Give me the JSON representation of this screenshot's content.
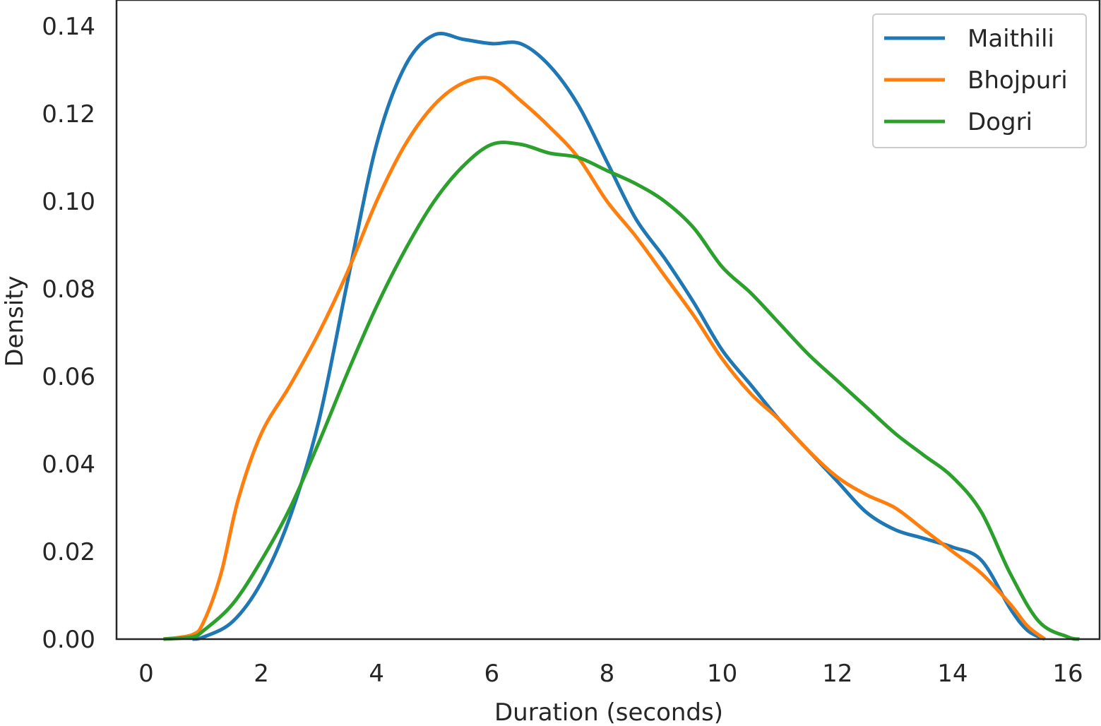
{
  "chart_data": {
    "type": "line",
    "title": "",
    "xlabel": "Duration (seconds)",
    "ylabel": "Density",
    "xlim": [
      -0.5,
      16.5
    ],
    "ylim": [
      0,
      0.146
    ],
    "x_ticks": [
      0,
      2,
      4,
      6,
      8,
      10,
      12,
      14,
      16
    ],
    "x_tick_labels": [
      "0",
      "2",
      "4",
      "6",
      "8",
      "10",
      "12",
      "14",
      "16"
    ],
    "y_ticks": [
      0.0,
      0.02,
      0.04,
      0.06,
      0.08,
      0.1,
      0.12,
      0.14
    ],
    "y_tick_labels": [
      "0.00",
      "0.02",
      "0.04",
      "0.06",
      "0.08",
      "0.10",
      "0.12",
      "0.14"
    ],
    "grid": false,
    "legend_position": "top-right",
    "series": [
      {
        "name": "Maithili",
        "color": "#1f77b4",
        "x": [
          0.8,
          1.0,
          1.5,
          2.0,
          2.5,
          3.0,
          3.5,
          4.0,
          4.5,
          5.0,
          5.5,
          6.0,
          6.5,
          7.0,
          7.5,
          8.0,
          8.5,
          9.0,
          9.5,
          10.0,
          10.5,
          11.0,
          11.5,
          12.0,
          12.5,
          13.0,
          13.5,
          14.0,
          14.5,
          15.0,
          15.3,
          15.6
        ],
        "y": [
          0.0,
          0.0005,
          0.004,
          0.013,
          0.028,
          0.05,
          0.082,
          0.113,
          0.131,
          0.138,
          0.137,
          0.136,
          0.136,
          0.131,
          0.122,
          0.109,
          0.096,
          0.087,
          0.077,
          0.066,
          0.058,
          0.05,
          0.043,
          0.036,
          0.029,
          0.025,
          0.023,
          0.021,
          0.018,
          0.007,
          0.002,
          0.0
        ]
      },
      {
        "name": "Bhojpuri",
        "color": "#ff7f0e",
        "x": [
          0.3,
          0.8,
          1.0,
          1.3,
          1.6,
          2.0,
          2.5,
          3.0,
          3.5,
          4.0,
          4.5,
          5.0,
          5.5,
          6.0,
          6.5,
          7.0,
          7.5,
          8.0,
          8.5,
          9.0,
          9.5,
          10.0,
          10.5,
          11.0,
          11.5,
          12.0,
          12.5,
          13.0,
          13.5,
          14.0,
          14.5,
          15.0,
          15.3,
          15.6
        ],
        "y": [
          0.0,
          0.001,
          0.004,
          0.015,
          0.032,
          0.047,
          0.058,
          0.07,
          0.084,
          0.1,
          0.113,
          0.122,
          0.127,
          0.128,
          0.123,
          0.117,
          0.11,
          0.1,
          0.092,
          0.083,
          0.074,
          0.064,
          0.056,
          0.05,
          0.043,
          0.037,
          0.033,
          0.03,
          0.025,
          0.02,
          0.015,
          0.008,
          0.003,
          0.0
        ]
      },
      {
        "name": "Dogri",
        "color": "#2ca02c",
        "x": [
          0.3,
          0.8,
          1.0,
          1.5,
          2.0,
          2.5,
          3.0,
          3.5,
          4.0,
          4.5,
          5.0,
          5.5,
          6.0,
          6.5,
          7.0,
          7.5,
          8.0,
          8.5,
          9.0,
          9.5,
          10.0,
          10.5,
          11.0,
          11.5,
          12.0,
          12.5,
          13.0,
          13.5,
          14.0,
          14.5,
          15.0,
          15.5,
          16.0,
          16.2
        ],
        "y": [
          0.0,
          0.0005,
          0.002,
          0.008,
          0.018,
          0.03,
          0.045,
          0.061,
          0.076,
          0.089,
          0.1,
          0.108,
          0.113,
          0.113,
          0.111,
          0.11,
          0.107,
          0.104,
          0.1,
          0.094,
          0.085,
          0.079,
          0.072,
          0.065,
          0.059,
          0.053,
          0.047,
          0.042,
          0.037,
          0.029,
          0.015,
          0.004,
          0.0005,
          0.0
        ]
      }
    ]
  }
}
